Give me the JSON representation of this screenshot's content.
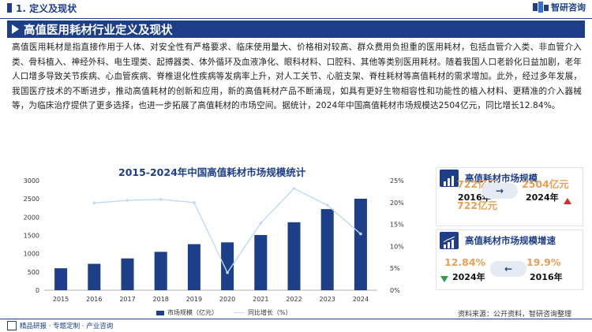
{
  "header": {
    "section_title": "1. 定义及现状",
    "logo_text": "智研咨询",
    "banner_title": "高值医用耗材行业定义及现状"
  },
  "paragraph": "高值医用耗材是指直接作用于人体、对安全性有严格要求、临床使用量大、价格相对较高、群众费用负担重的医用耗材，包括血管介入类、非血管介入类、骨科植入、神经外科、电生理类、起搏器类、体外循环及血液净化、眼科材料、口腔科、其他等类别医用耗材。随着我国人口老龄化日益加剧，老年人口增多导致关节疾病、心血管疾病、脊椎退化性疾病等发病率上升，对人工关节、心脏支架、脊柱耗材等高值耗材的需求增加。此外，经过多年发展，我国医疗技术的不断进步，推动高值耗材的创新和应用，新的高值耗材产品不断涌现，如具有更好生物相容性和功能性的植入材料、更精准的介入器械等，为临床治疗提供了更多选择，也进一步拓展了高值耗材的市场空间。据统计，2024年中国高值耗材市场规模达2504亿元，同比增长12.84%。",
  "chart_data": {
    "type": "bar",
    "title": "2015-2024年中国高值耗材市场规模统计",
    "categories": [
      "2015",
      "2016",
      "2017",
      "2018",
      "2019",
      "2020",
      "2021",
      "2022",
      "2023",
      "2024"
    ],
    "series": [
      {
        "name": "市场规模（亿元）",
        "type": "bar",
        "axis": "left",
        "values": [
          600,
          722,
          870,
          1050,
          1260,
          1310,
          1510,
          1860,
          2220,
          2504
        ]
      },
      {
        "name": "同比增长（%）",
        "type": "line",
        "axis": "right",
        "values": [
          null,
          19.9,
          20.5,
          20.7,
          20.0,
          4.0,
          15.3,
          23.2,
          19.4,
          12.84
        ]
      }
    ],
    "y_left": {
      "min": 0,
      "max": 3000,
      "ticks": [
        "0",
        "500",
        "1000",
        "1500",
        "2000",
        "2500",
        "3000"
      ]
    },
    "y_right": {
      "min": 0,
      "max": 25,
      "ticks": [
        "0%",
        "5%",
        "10%",
        "15%",
        "20%",
        "25%"
      ]
    },
    "colors": {
      "bar": "#1d3f8a",
      "line": "#c2daf0"
    },
    "legend_position": "bottom"
  },
  "cards": {
    "scale": {
      "title": "高值耗材市场规模",
      "left_value": "722亿元",
      "left_year": "2016年",
      "right_value": "2504亿元",
      "right_year": "2024年"
    },
    "growth": {
      "title": "高值耗材市场规模增速",
      "left_value": "12.84%",
      "left_year": "2024年",
      "right_value": "19.9%",
      "right_year": "2016年"
    }
  },
  "legend": {
    "bar_label": "市场规模（亿元）",
    "line_label": "同比增长（%）"
  },
  "footer": {
    "left_text": "精品研报 · 专题定制 · 产业咨询",
    "source": "资料来源：公开资料，智研咨询整理"
  }
}
